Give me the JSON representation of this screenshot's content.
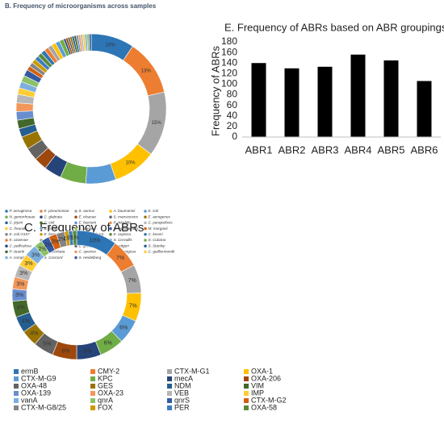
{
  "chart_data": [
    {
      "type": "pie",
      "title": "B. Frequency of microorganisms across samples",
      "categories": [
        "P. aeruginosa",
        "K. pneumoniae",
        "S. aureus",
        "A. baumannii",
        "E. coli",
        "N. gonorrhoeae",
        "C. glabrata",
        "E. cloacae",
        "S. marcescens",
        "E. aerogenes",
        "C. jejuni",
        "C. coli",
        "E. faecium",
        "P. mirabilis",
        "C. parapsilosis",
        "C. freundii",
        "B. fiorani",
        "S. sonnei",
        "S. typhimurium",
        "M. morganii",
        "E. coli O157",
        "E. faecalis",
        "S. Senftenberg",
        "K. oxytoca",
        "C. koseri",
        "K. ozaenae",
        "S. Infantis",
        "E. avium",
        "S. Corvallis",
        "S. Cubana",
        "C. pelliculosa",
        "S. Albert",
        "E. group",
        "P. rettgeri",
        "S. Stanley",
        "P. stuartii",
        "K. ascorbata",
        "C. species",
        "C. parengusa",
        "C. guilliermondii",
        "A. complex",
        "S. Concord",
        "S. Heidelberg"
      ],
      "values": [
        10,
        13,
        15,
        10,
        7,
        6,
        4,
        3,
        3,
        3,
        2,
        2,
        2,
        2,
        2,
        1.5,
        1.5,
        1.5,
        1.5,
        1,
        1,
        1,
        1,
        1,
        1,
        1,
        1,
        1,
        1,
        1,
        0.5,
        0.5,
        0.5,
        0.5,
        0.5,
        0.5,
        0.5,
        0.5,
        0.5,
        0.5,
        0.5,
        0.5,
        0.5
      ],
      "value_labels": [
        "10%",
        "13%",
        "15%",
        "10%",
        null,
        null,
        null,
        null,
        null,
        null,
        null,
        null,
        null,
        null,
        null,
        null,
        null,
        null,
        null,
        null,
        null,
        null,
        null,
        null,
        null,
        null,
        null,
        null,
        null,
        null,
        null,
        null,
        null,
        null,
        null,
        null,
        null,
        null,
        null,
        null,
        null,
        null,
        null
      ],
      "colors": [
        "#2e75b6",
        "#ed7d31",
        "#a5a5a5",
        "#ffc000",
        "#5b9bd5",
        "#70ad47",
        "#264478",
        "#9e480e",
        "#636363",
        "#997300",
        "#255e91",
        "#43682b",
        "#698ed0",
        "#f1975a",
        "#b7b7b7",
        "#ffcd33",
        "#7cafdd",
        "#8cc168",
        "#335aa1",
        "#d26012",
        "#848484",
        "#cc9a00",
        "#3c7dc0",
        "#5a8a39"
      ]
    },
    {
      "type": "bar",
      "title": "E. Frequency of ABRs based on ABR groupings",
      "y_label": "Frequency of ABRs",
      "categories": [
        "ABR1",
        "ABR2",
        "ABR3",
        "ABR4",
        "ABR5",
        "ABR6"
      ],
      "values": [
        140,
        130,
        133,
        156,
        145,
        106
      ],
      "color": "#000000",
      "ylim": [
        0,
        180
      ],
      "yticks": [
        0,
        20,
        40,
        60,
        80,
        100,
        120,
        140,
        160,
        180
      ],
      "grid": false
    },
    {
      "type": "pie",
      "title": "C. Frequency of ABRs",
      "categories": [
        "ermB",
        "CMY-2",
        "CTX-M-G1",
        "OXA-1",
        "CTX-M-G9",
        "KPC",
        "mecA",
        "OXA-206",
        "OXA-48",
        "GES",
        "NDM",
        "VIM",
        "OXA-139",
        "OXA-23",
        "VEB",
        "IMP",
        "vanA",
        "qnrA",
        "qnrS",
        "CTX-M-G2",
        "CTX-M-G8/25",
        "FOX",
        "PER",
        "OXA-58"
      ],
      "values": [
        10,
        7,
        7,
        7,
        6,
        6,
        6,
        6,
        5,
        4,
        4,
        4,
        3,
        3,
        3,
        3,
        3,
        2,
        2,
        2,
        2,
        1,
        1,
        1
      ],
      "value_labels": [
        "10%",
        "7%",
        "7%",
        "7%",
        "6%",
        "6%",
        "6%",
        "6%",
        "5%",
        "4%",
        "4%",
        "4%",
        "3%",
        "3%",
        "3%",
        "3%",
        "3%",
        "2%",
        "2%",
        "2%",
        "2%",
        "1%",
        "1%",
        "1%"
      ],
      "colors": [
        "#2e75b6",
        "#ed7d31",
        "#a5a5a5",
        "#ffc000",
        "#5b9bd5",
        "#70ad47",
        "#264478",
        "#9e480e",
        "#636363",
        "#997300",
        "#255e91",
        "#43682b",
        "#698ed0",
        "#f1975a",
        "#b7b7b7",
        "#ffcd33",
        "#7cafdd",
        "#8cc168",
        "#335aa1",
        "#d26012",
        "#848484",
        "#cc9a00",
        "#3c7dc0",
        "#5a8a39"
      ]
    }
  ]
}
